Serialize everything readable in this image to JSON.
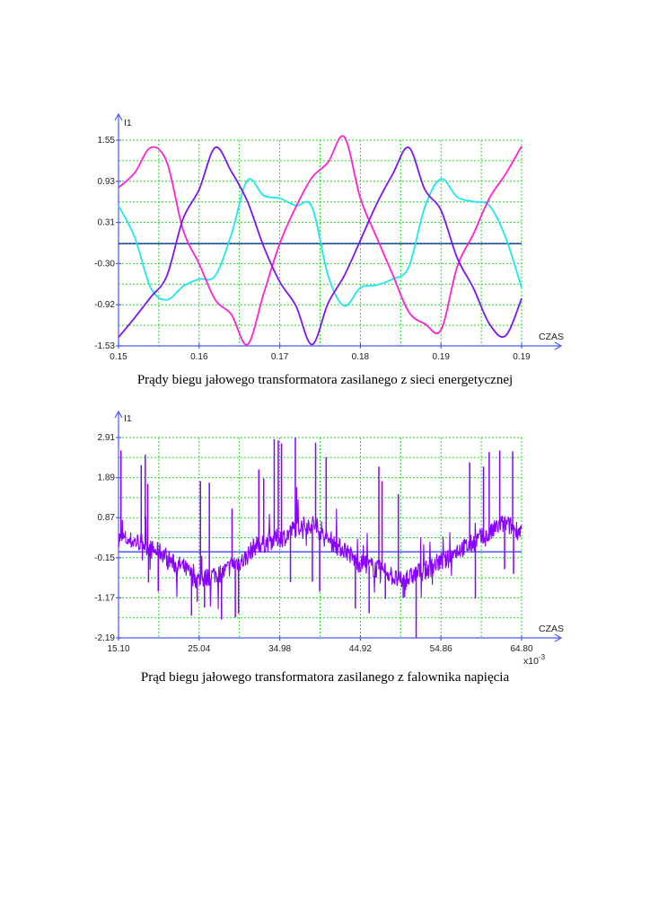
{
  "captions": {
    "top": "Prądy biegu jałowego transformatora zasilanego z sieci energetycznej",
    "bottom": "Prąd biegu jałowego transformatora zasilanego z falownika napięcia"
  },
  "colors": {
    "axis": "#4a5cff",
    "grid": "#22dd22",
    "zero_line": "#2f4aa8",
    "magenta": "#ff1fd8",
    "purple": "#7f14ee",
    "cyan": "#1fe6f0",
    "bottom_signal": "#8a00ff"
  },
  "chart_data": [
    {
      "type": "line",
      "title": "",
      "ylabel": "I1",
      "xlabel": "CZAS",
      "xlim": [
        0.15,
        0.2
      ],
      "ylim": [
        -1.53,
        1.55
      ],
      "grid": true,
      "x_tick_labels": [
        "0.15",
        "0.16",
        "0.17",
        "0.18",
        "0.19",
        "0.19"
      ],
      "y_tick_labels": [
        "1.55",
        "0.93",
        "0.31",
        "-0.30",
        "-0.92",
        "-1.53"
      ],
      "x": [
        0.15,
        0.152,
        0.154,
        0.156,
        0.158,
        0.16,
        0.162,
        0.164,
        0.166,
        0.168,
        0.17,
        0.172,
        0.174,
        0.176,
        0.178,
        0.18,
        0.182,
        0.184,
        0.186,
        0.188,
        0.19,
        0.192,
        0.194,
        0.196,
        0.198,
        0.2
      ],
      "series": [
        {
          "name": "magenta",
          "color": "#ff1fd8",
          "values": [
            0.84,
            1.06,
            1.44,
            1.22,
            0.21,
            -0.3,
            -0.84,
            -1.06,
            -1.51,
            -0.75,
            0.0,
            0.55,
            0.99,
            1.22,
            1.6,
            0.68,
            0.1,
            -0.46,
            -1.02,
            -1.2,
            -1.29,
            -0.35,
            0.14,
            0.68,
            1.04,
            1.46
          ]
        },
        {
          "name": "purple",
          "color": "#7f14ee",
          "values": [
            -1.4,
            -1.11,
            -0.8,
            -0.48,
            0.37,
            0.81,
            1.44,
            1.08,
            0.63,
            -0.04,
            -0.57,
            -0.93,
            -1.51,
            -0.89,
            -0.48,
            0.05,
            0.59,
            1.04,
            1.44,
            0.81,
            0.5,
            -0.21,
            -0.66,
            -1.2,
            -1.38,
            -0.82
          ]
        },
        {
          "name": "cyan",
          "color": "#1fe6f0",
          "values": [
            0.57,
            0.1,
            -0.66,
            -0.84,
            -0.64,
            -0.53,
            -0.48,
            0.14,
            0.95,
            0.72,
            0.68,
            0.57,
            0.55,
            -0.48,
            -0.93,
            -0.66,
            -0.62,
            -0.53,
            -0.35,
            0.55,
            0.97,
            0.7,
            0.63,
            0.57,
            0.1,
            -0.66
          ]
        },
        {
          "name": "zero",
          "color": "#2f4aa8",
          "values": [
            0,
            0,
            0,
            0,
            0,
            0,
            0,
            0,
            0,
            0,
            0,
            0,
            0,
            0,
            0,
            0,
            0,
            0,
            0,
            0,
            0,
            0,
            0,
            0,
            0,
            0
          ]
        }
      ]
    },
    {
      "type": "line",
      "title": "",
      "ylabel": "I1",
      "xlabel": "CZAS",
      "x_multiplier": "x10",
      "x_multiplier_exp": "-3",
      "xlim": [
        15.1,
        64.8
      ],
      "ylim": [
        -2.19,
        2.91
      ],
      "grid": true,
      "x_tick_labels": [
        "15.10",
        "25.04",
        "34.98",
        "44.92",
        "54.86",
        "64.80"
      ],
      "y_tick_labels": [
        "2.91",
        "1.89",
        "0.87",
        "-0.15",
        "-1.17",
        "-2.19"
      ],
      "baseline": {
        "x": [
          15.1,
          17.5,
          20,
          22.5,
          25,
          27.5,
          30,
          32.5,
          35,
          37.5,
          39,
          41,
          42.5,
          45,
          47.5,
          50,
          52.5,
          55,
          57.5,
          60,
          62.5,
          64.8
        ],
        "values": [
          0.35,
          0.25,
          0.0,
          -0.35,
          -0.7,
          -0.55,
          -0.25,
          0.2,
          0.35,
          0.65,
          0.7,
          0.3,
          0.1,
          -0.3,
          -0.45,
          -0.75,
          -0.5,
          -0.25,
          0.1,
          0.35,
          0.7,
          0.55
        ]
      },
      "noise_amplitude": 0.25,
      "spikes": [
        [
          15.4,
          2.58
        ],
        [
          17.9,
          2.21
        ],
        [
          18.4,
          2.47
        ],
        [
          18.7,
          1.73
        ],
        [
          25.2,
          1.8
        ],
        [
          26.3,
          1.76
        ],
        [
          29.1,
          1.1
        ],
        [
          32.4,
          2.1
        ],
        [
          33.0,
          1.87
        ],
        [
          34.3,
          2.87
        ],
        [
          34.8,
          2.84
        ],
        [
          35.2,
          2.76
        ],
        [
          36.9,
          2.91
        ],
        [
          39.4,
          2.78
        ],
        [
          40.7,
          2.41
        ],
        [
          47.2,
          2.17
        ],
        [
          47.6,
          1.8
        ],
        [
          49.6,
          1.47
        ],
        [
          58.4,
          2.28
        ],
        [
          60.1,
          2.17
        ],
        [
          60.8,
          2.54
        ],
        [
          62.1,
          2.58
        ],
        [
          63.7,
          2.56
        ],
        [
          18.8,
          -0.78
        ],
        [
          20.0,
          -1.01
        ],
        [
          24.1,
          -1.62
        ],
        [
          24.8,
          -1.27
        ],
        [
          25.7,
          -1.42
        ],
        [
          27.8,
          -1.72
        ],
        [
          29.5,
          -1.67
        ],
        [
          29.9,
          -1.57
        ],
        [
          36.3,
          -0.77
        ],
        [
          39.0,
          -0.76
        ],
        [
          39.9,
          -1.01
        ],
        [
          44.3,
          -1.44
        ],
        [
          46.0,
          -1.56
        ],
        [
          48.0,
          -1.2
        ],
        [
          50.2,
          -1.16
        ],
        [
          51.8,
          -2.18
        ],
        [
          59.1,
          -1.19
        ],
        [
          62.7,
          -0.44
        ],
        [
          63.8,
          -0.56
        ]
      ],
      "zero_line": 0
    }
  ]
}
